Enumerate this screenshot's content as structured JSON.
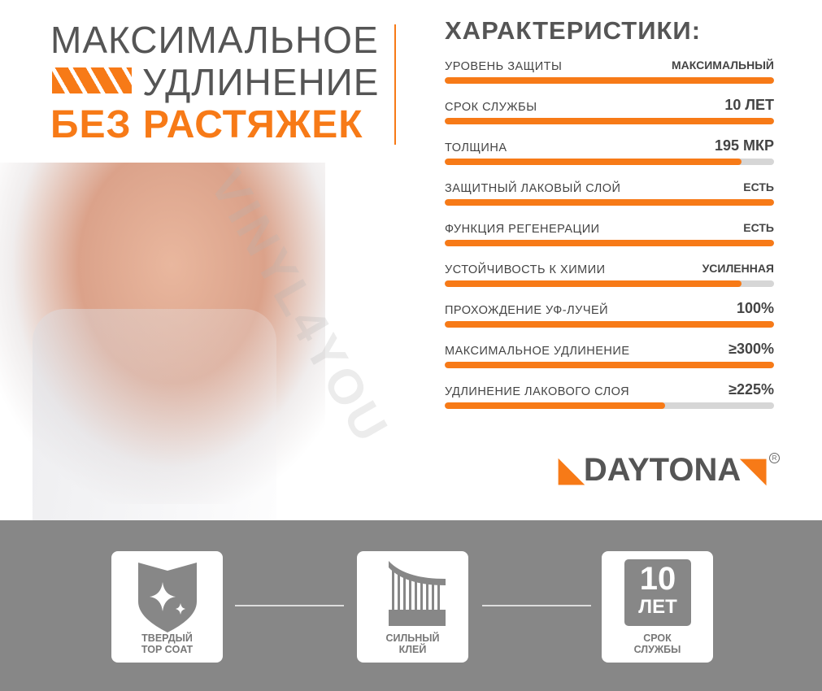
{
  "headline": {
    "line1": "МАКСИМАЛЬНОЕ",
    "line2": "УДЛИНЕНИЕ",
    "line3": "БЕЗ РАСТЯЖЕК"
  },
  "watermark": "VINYL4YOU",
  "specs": {
    "title": "ХАРАКТЕРИСТИКИ:",
    "items": [
      {
        "label": "УРОВЕНЬ ЗАЩИТЫ",
        "value": "МАКСИМАЛЬНЫЙ",
        "level": 1.0
      },
      {
        "label": "СРОК СЛУЖБЫ",
        "value": "10 ЛЕТ",
        "level": 1.0
      },
      {
        "label": "ТОЛЩИНА",
        "value": "195 МКР",
        "level": 0.9
      },
      {
        "label": "ЗАЩИТНЫЙ ЛАКОВЫЙ СЛОЙ",
        "value": "ЕСТЬ",
        "level": 1.0
      },
      {
        "label": "ФУНКЦИЯ РЕГЕНЕРАЦИИ",
        "value": "ЕСТЬ",
        "level": 1.0
      },
      {
        "label": "УСТОЙЧИВОСТЬ К ХИМИИ",
        "value": "УСИЛЕННАЯ",
        "level": 0.9
      },
      {
        "label": "ПРОХОЖДЕНИЕ УФ-ЛУЧЕЙ",
        "value": "100%",
        "level": 1.0
      },
      {
        "label": "МАКСИМАЛЬНОЕ УДЛИНЕНИЕ",
        "value": "≥300%",
        "level": 1.0
      },
      {
        "label": "УДЛИНЕНИЕ ЛАКОВОГО СЛОЯ",
        "value": "≥225%",
        "level": 0.67
      }
    ]
  },
  "brand": {
    "name": "DAYTONA",
    "reg": "R"
  },
  "features": [
    {
      "icon": "shield-sparkle-icon",
      "line1": "ТВЕРДЫЙ",
      "line2": "TOP COAT"
    },
    {
      "icon": "adhesive-icon",
      "line1": "СИЛЬНЫЙ",
      "line2": "КЛЕЙ"
    },
    {
      "icon": "ten-years-icon",
      "badge_number": "10",
      "badge_unit": "ЛЕТ",
      "line1": "СРОК",
      "line2": "СЛУЖБЫ"
    }
  ],
  "colors": {
    "accent": "#f77a17",
    "text": "#555555",
    "band": "#878787"
  }
}
